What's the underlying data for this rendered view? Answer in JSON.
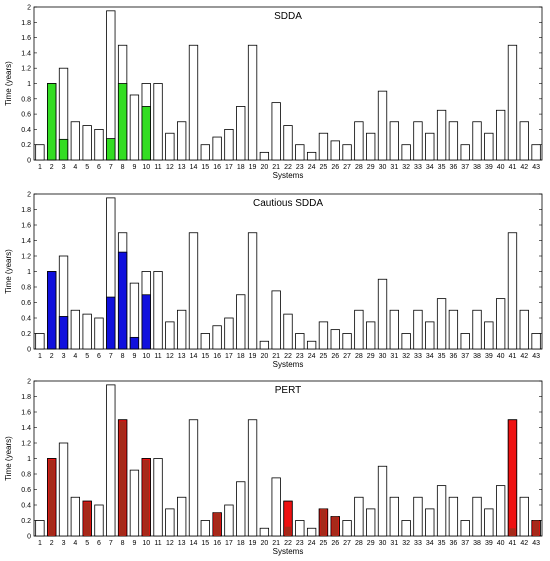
{
  "chart_data": [
    {
      "type": "bar",
      "title": "SDDA",
      "xlabel": "Systems",
      "ylabel": "Time (years)",
      "ylim": [
        0,
        2
      ],
      "yticks": [
        "0",
        "0.2",
        "0.4",
        "0.6",
        "0.8",
        "1",
        "1.2",
        "1.4",
        "1.6",
        "1.8",
        "2"
      ],
      "categories": [
        "1",
        "2",
        "3",
        "4",
        "5",
        "6",
        "7",
        "8",
        "9",
        "10",
        "11",
        "12",
        "13",
        "14",
        "15",
        "16",
        "17",
        "18",
        "19",
        "20",
        "21",
        "22",
        "23",
        "24",
        "25",
        "26",
        "27",
        "28",
        "29",
        "30",
        "31",
        "32",
        "33",
        "34",
        "35",
        "36",
        "37",
        "38",
        "39",
        "40",
        "41",
        "42",
        "43"
      ],
      "overlay_color": "#33dd22",
      "series": [
        {
          "values": [
            0.2,
            1.0,
            1.2,
            0.5,
            0.45,
            0.4,
            1.95,
            1.5,
            0.85,
            1.0,
            1.0,
            0.35,
            0.5,
            1.5,
            0.2,
            0.3,
            0.4,
            0.7,
            1.5,
            0.1,
            0.75,
            0.45,
            0.2,
            0.1,
            0.35,
            0.25,
            0.2,
            0.5,
            0.35,
            0.9,
            0.5,
            0.2,
            0.5,
            0.35,
            0.65,
            0.5,
            0.2,
            0.5,
            0.35,
            0.65,
            1.5,
            0.5,
            0.2
          ]
        },
        {
          "values": [
            null,
            1.0,
            0.27,
            null,
            null,
            null,
            0.28,
            1.0,
            null,
            0.7,
            null,
            null,
            null,
            null,
            null,
            null,
            null,
            null,
            null,
            null,
            null,
            null,
            null,
            null,
            null,
            null,
            null,
            null,
            null,
            null,
            null,
            null,
            null,
            null,
            null,
            null,
            null,
            null,
            null,
            null,
            null,
            null,
            null
          ]
        }
      ],
      "grid": false
    },
    {
      "type": "bar",
      "title": "Cautious SDDA",
      "xlabel": "Systems",
      "ylabel": "Time (years)",
      "ylim": [
        0,
        2
      ],
      "yticks": [
        "0",
        "0.2",
        "0.4",
        "0.6",
        "0.8",
        "1",
        "1.2",
        "1.4",
        "1.6",
        "1.8",
        "2"
      ],
      "categories": [
        "1",
        "2",
        "3",
        "4",
        "5",
        "6",
        "7",
        "8",
        "9",
        "10",
        "11",
        "12",
        "13",
        "14",
        "15",
        "16",
        "17",
        "18",
        "19",
        "20",
        "21",
        "22",
        "23",
        "24",
        "25",
        "26",
        "27",
        "28",
        "29",
        "30",
        "31",
        "32",
        "33",
        "34",
        "35",
        "36",
        "37",
        "38",
        "39",
        "40",
        "41",
        "42",
        "43"
      ],
      "overlay_color": "#1010dd",
      "series": [
        {
          "values": [
            0.2,
            1.0,
            1.2,
            0.5,
            0.45,
            0.4,
            1.95,
            1.5,
            0.85,
            1.0,
            1.0,
            0.35,
            0.5,
            1.5,
            0.2,
            0.3,
            0.4,
            0.7,
            1.5,
            0.1,
            0.75,
            0.45,
            0.2,
            0.1,
            0.35,
            0.25,
            0.2,
            0.5,
            0.35,
            0.9,
            0.5,
            0.2,
            0.5,
            0.35,
            0.65,
            0.5,
            0.2,
            0.5,
            0.35,
            0.65,
            1.5,
            0.5,
            0.2
          ]
        },
        {
          "values": [
            null,
            1.0,
            0.42,
            null,
            null,
            null,
            0.67,
            1.25,
            0.15,
            0.7,
            null,
            null,
            null,
            null,
            null,
            null,
            null,
            null,
            null,
            null,
            null,
            null,
            null,
            null,
            null,
            null,
            null,
            null,
            null,
            null,
            null,
            null,
            null,
            null,
            null,
            null,
            null,
            null,
            null,
            null,
            null,
            null,
            null
          ]
        }
      ],
      "grid": false
    },
    {
      "type": "bar",
      "title": "PERT",
      "xlabel": "Systems",
      "ylabel": "Time (years)",
      "ylim": [
        0,
        2
      ],
      "yticks": [
        "0",
        "0.2",
        "0.4",
        "0.6",
        "0.8",
        "1",
        "1.2",
        "1.4",
        "1.6",
        "1.8",
        "2"
      ],
      "categories": [
        "1",
        "2",
        "3",
        "4",
        "5",
        "6",
        "7",
        "8",
        "9",
        "10",
        "11",
        "12",
        "13",
        "14",
        "15",
        "16",
        "17",
        "18",
        "19",
        "20",
        "21",
        "22",
        "23",
        "24",
        "25",
        "26",
        "27",
        "28",
        "29",
        "30",
        "31",
        "32",
        "33",
        "34",
        "35",
        "36",
        "37",
        "38",
        "39",
        "40",
        "41",
        "42",
        "43"
      ],
      "overlay_color": "#ee1111",
      "overlay_dark_color": "#a52a1a",
      "series": [
        {
          "values": [
            0.2,
            1.0,
            1.2,
            0.5,
            0.45,
            0.4,
            1.95,
            1.5,
            0.85,
            1.0,
            1.0,
            0.35,
            0.5,
            1.5,
            0.2,
            0.3,
            0.4,
            0.7,
            1.5,
            0.1,
            0.75,
            0.45,
            0.2,
            0.1,
            0.35,
            0.25,
            0.2,
            0.5,
            0.35,
            0.9,
            0.5,
            0.2,
            0.5,
            0.35,
            0.65,
            0.5,
            0.2,
            0.5,
            0.35,
            0.65,
            1.5,
            0.5,
            0.2
          ]
        },
        {
          "values": [
            null,
            1.0,
            null,
            null,
            0.45,
            null,
            null,
            1.5,
            null,
            1.0,
            null,
            null,
            null,
            null,
            null,
            0.3,
            null,
            null,
            null,
            null,
            null,
            0.45,
            null,
            null,
            0.35,
            0.25,
            null,
            null,
            null,
            null,
            null,
            null,
            null,
            null,
            null,
            null,
            null,
            null,
            null,
            null,
            1.5,
            null,
            0.2
          ]
        },
        {
          "values": [
            null,
            0.98,
            null,
            null,
            0.43,
            null,
            null,
            1.48,
            null,
            0.98,
            null,
            null,
            null,
            null,
            null,
            0.3,
            null,
            null,
            null,
            null,
            null,
            0.12,
            null,
            null,
            0.35,
            0.25,
            null,
            null,
            null,
            null,
            null,
            null,
            null,
            null,
            null,
            null,
            null,
            null,
            null,
            null,
            0.1,
            null,
            0.2
          ]
        }
      ],
      "grid": false
    }
  ]
}
